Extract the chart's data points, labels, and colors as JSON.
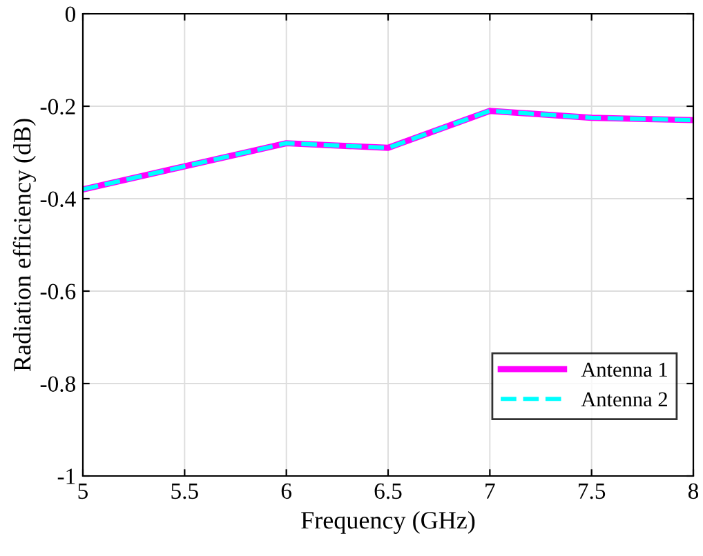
{
  "chart_data": {
    "type": "line",
    "xlabel": "Frequency (GHz)",
    "ylabel": "Radiation efficiency (dB)",
    "x": [
      5,
      5.5,
      6,
      6.5,
      7,
      7.5,
      8
    ],
    "series": [
      {
        "name": "Antenna 1",
        "color": "#ff00ff",
        "line_style": "solid",
        "values": [
          -0.38,
          -0.33,
          -0.28,
          -0.29,
          -0.21,
          -0.225,
          -0.23
        ]
      },
      {
        "name": "Antenna 2",
        "color": "#00ffff",
        "line_style": "dashed",
        "values": [
          -0.38,
          -0.33,
          -0.28,
          -0.29,
          -0.21,
          -0.225,
          -0.23
        ]
      }
    ],
    "xlim": [
      5,
      8
    ],
    "xticks": [
      5,
      5.5,
      6,
      6.5,
      7,
      7.5,
      8
    ],
    "ylim": [
      -1,
      0
    ],
    "yticks": [
      -1,
      -0.8,
      -0.6,
      -0.4,
      -0.2,
      0
    ],
    "grid": true,
    "legend": "bottom right",
    "marker": "none"
  }
}
